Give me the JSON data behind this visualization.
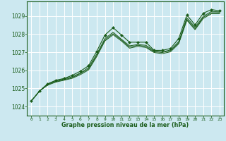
{
  "bg_color": "#cce8f0",
  "grid_color": "#ffffff",
  "line_color": "#1a5c1a",
  "marker_color": "#1a5c1a",
  "xlabel": "Graphe pression niveau de la mer (hPa)",
  "ylim": [
    1023.5,
    1029.8
  ],
  "xlim": [
    -0.5,
    23.5
  ],
  "yticks": [
    1024,
    1025,
    1026,
    1027,
    1028,
    1029
  ],
  "xticks": [
    0,
    1,
    2,
    3,
    4,
    5,
    6,
    7,
    8,
    9,
    10,
    11,
    12,
    13,
    14,
    15,
    16,
    17,
    18,
    19,
    20,
    21,
    22,
    23
  ],
  "series": [
    [
      1024.3,
      1024.85,
      1025.25,
      1025.45,
      1025.55,
      1025.72,
      1025.95,
      1026.25,
      1027.05,
      1027.95,
      1028.35,
      1027.95,
      1027.55,
      1027.55,
      1027.55,
      1027.1,
      1027.1,
      1027.2,
      1027.75,
      1029.05,
      1028.5,
      1029.15,
      1029.35,
      1029.28
    ],
    [
      1024.3,
      1024.85,
      1025.25,
      1025.42,
      1025.52,
      1025.65,
      1025.85,
      1026.15,
      1026.9,
      1027.75,
      1028.1,
      1027.72,
      1027.35,
      1027.42,
      1027.38,
      1027.08,
      1027.02,
      1027.12,
      1027.58,
      1028.9,
      1028.38,
      1028.98,
      1029.25,
      1029.22
    ],
    [
      1024.3,
      1024.85,
      1025.22,
      1025.38,
      1025.48,
      1025.6,
      1025.82,
      1026.08,
      1026.82,
      1027.68,
      1028.02,
      1027.68,
      1027.28,
      1027.38,
      1027.32,
      1027.02,
      1026.98,
      1027.08,
      1027.52,
      1028.82,
      1028.3,
      1028.92,
      1029.18,
      1029.18
    ],
    [
      1024.3,
      1024.85,
      1025.18,
      1025.35,
      1025.45,
      1025.56,
      1025.76,
      1026.02,
      1026.76,
      1027.62,
      1027.96,
      1027.62,
      1027.22,
      1027.32,
      1027.26,
      1026.98,
      1026.92,
      1027.02,
      1027.46,
      1028.76,
      1028.24,
      1028.86,
      1029.12,
      1029.12
    ]
  ]
}
